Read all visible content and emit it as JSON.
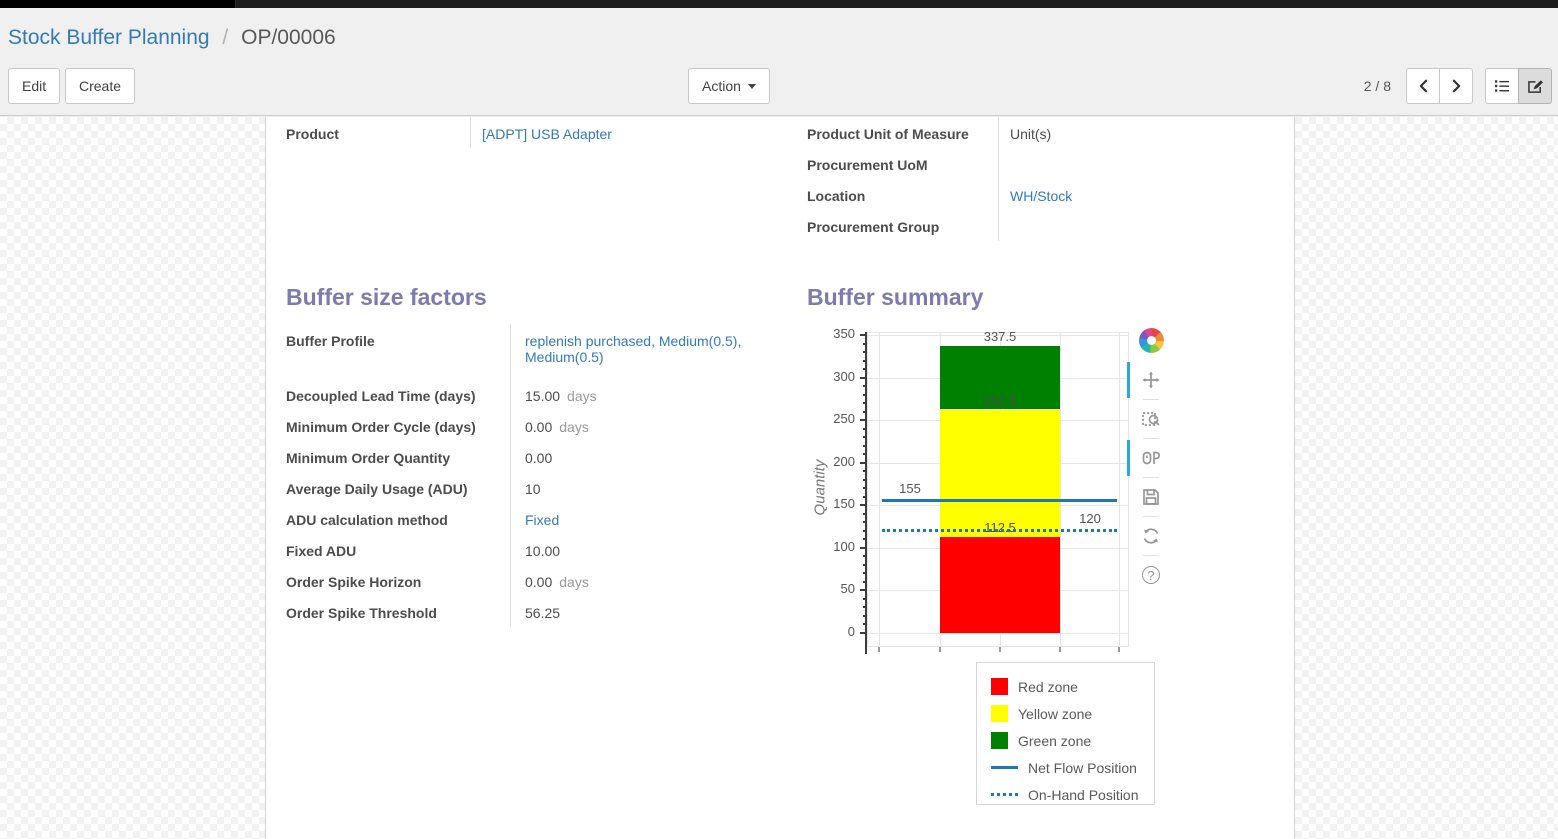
{
  "breadcrumb": {
    "parent": "Stock Buffer Planning",
    "separator": "/",
    "current": "OP/00006"
  },
  "toolbar": {
    "edit_label": "Edit",
    "create_label": "Create",
    "action_label": "Action",
    "pager": "2 / 8"
  },
  "icons": {
    "help_glyph": "?"
  },
  "form": {
    "left_fields": [
      {
        "label": "Product",
        "value": "[ADPT] USB Adapter"
      }
    ],
    "right_fields": [
      {
        "label": "Product Unit of Measure",
        "value": "Unit(s)"
      },
      {
        "label": "Procurement UoM",
        "value": ""
      },
      {
        "label": "Location",
        "value": "WH/Stock"
      },
      {
        "label": "Procurement Group",
        "value": ""
      }
    ],
    "buffer_factors": {
      "title": "Buffer size factors",
      "fields": [
        {
          "label": "Buffer Profile",
          "value": "replenish purchased, Medium(0.5), Medium(0.5)"
        },
        {
          "label": "Decoupled Lead Time (days)",
          "value": "15.00",
          "suffix": "days"
        },
        {
          "label": "Minimum Order Cycle (days)",
          "value": "0.00",
          "suffix": "days"
        },
        {
          "label": "Minimum Order Quantity",
          "value": "0.00"
        },
        {
          "label": "Average Daily Usage (ADU)",
          "value": "10"
        },
        {
          "label": "ADU calculation method",
          "value": "Fixed"
        },
        {
          "label": "Fixed ADU",
          "value": "10.00"
        },
        {
          "label": "Order Spike Horizon",
          "value": "0.00",
          "suffix": "days"
        },
        {
          "label": "Order Spike Threshold",
          "value": "56.25"
        }
      ]
    },
    "buffer_summary_title": "Buffer summary"
  },
  "chart_data": {
    "type": "bar",
    "title": "Buffer summary",
    "xlabel": "",
    "ylabel": "Quantity",
    "ylim": [
      0,
      350
    ],
    "y_major_step": 50,
    "y_minor_step": 10,
    "grid": true,
    "zones": [
      {
        "name": "Red zone",
        "from": 0,
        "to": 112.5,
        "color": "#ff0000"
      },
      {
        "name": "Yellow zone",
        "from": 112.5,
        "to": 262.5,
        "color": "#ffff00"
      },
      {
        "name": "Green zone",
        "from": 262.5,
        "to": 337.5,
        "color": "#008000"
      }
    ],
    "lines": [
      {
        "name": "Net Flow Position",
        "value": 155,
        "style": "solid",
        "color": "#1f77b4",
        "label_side": "left"
      },
      {
        "name": "On-Hand Position",
        "value": 120,
        "style": "dotted",
        "color": "#1f77b4",
        "label_side": "right"
      }
    ],
    "bar_boundary_labels": [
      337.5,
      262.5,
      112.5
    ],
    "legend": [
      "Red zone",
      "Yellow zone",
      "Green zone",
      "Net Flow Position",
      "On-Hand Position"
    ],
    "legend_position": "below-right",
    "toolbar_tools": [
      "pan",
      "box-zoom",
      "hover",
      "save",
      "reset",
      "help"
    ],
    "active_tools": [
      "pan",
      "hover"
    ]
  }
}
